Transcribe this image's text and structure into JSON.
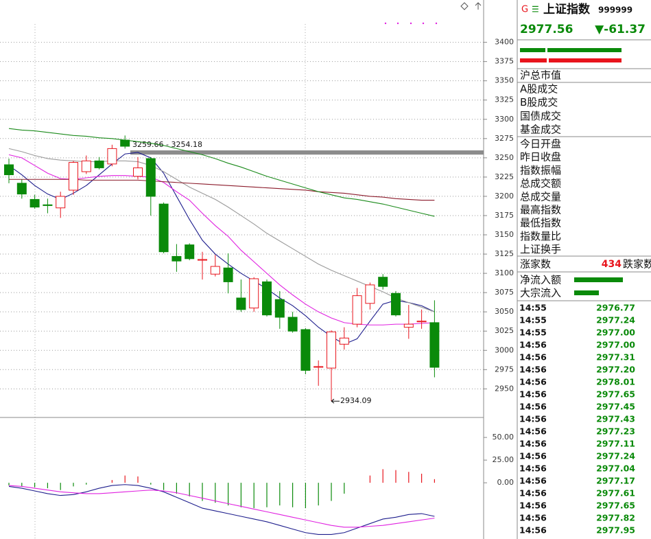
{
  "chart_data": [
    {
      "type": "candlestick",
      "ylim": [
        2920,
        3446
      ],
      "yticks": [
        3400,
        3375,
        3350,
        3325,
        3300,
        3275,
        3250,
        3225,
        3200,
        3175,
        3150,
        3125,
        3100,
        3075,
        3050,
        3025,
        3000,
        2975,
        2950
      ],
      "grid": true,
      "up_color": "#e8141c",
      "down_color": "#0a8a0a",
      "open": [
        3241,
        3217,
        3196,
        3189,
        3185,
        3208,
        3232,
        3246,
        3242,
        3273,
        3226,
        3249,
        3190,
        3122,
        3137,
        3117,
        3099,
        3107,
        3068,
        3055,
        3089,
        3066,
        3043,
        3027,
        2978,
        2977,
        3008,
        3034,
        3061,
        3095,
        3074,
        3030,
        3037,
        3036
      ],
      "high": [
        3249,
        3222,
        3202,
        3197,
        3206,
        3246,
        3253,
        3251,
        3267,
        3279,
        3251,
        3251,
        3192,
        3138,
        3139,
        3128,
        3124,
        3126,
        3092,
        3095,
        3092,
        3077,
        3050,
        3029,
        2987,
        3026,
        3030,
        3081,
        3088,
        3099,
        3077,
        3059,
        3053,
        3065
      ],
      "low": [
        3217,
        3197,
        3184,
        3178,
        3172,
        3202,
        3229,
        3235,
        3239,
        3262,
        3222,
        3175,
        3126,
        3102,
        3117,
        3092,
        3096,
        3074,
        3050,
        3050,
        3044,
        3028,
        3023,
        2969,
        2954,
        2934.09,
        3001,
        3030,
        3053,
        3079,
        3044,
        3015,
        3028,
        2965
      ],
      "close": [
        3228,
        3203,
        3186,
        3188,
        3200,
        3244,
        3246,
        3237,
        3262,
        3265,
        3237,
        3200,
        3128,
        3116,
        3119,
        3118,
        3109,
        3089,
        3053,
        3093,
        3046,
        3043,
        3025,
        2974,
        2979,
        3024,
        3016,
        3071,
        3085,
        3083,
        3046,
        3034,
        3038,
        2978
      ],
      "series": [
        {
          "color": "#1c1c8c",
          "values": [
            3240,
            3228,
            3214,
            3203,
            3196,
            3204,
            3214,
            3228,
            3242,
            3255,
            3257,
            3250,
            3230,
            3200,
            3170,
            3143,
            3125,
            3112,
            3100,
            3090,
            3080,
            3068,
            3058,
            3045,
            3030,
            3018,
            3008,
            3015,
            3038,
            3060,
            3065,
            3062,
            3058,
            3050
          ]
        },
        {
          "color": "#e020e0",
          "values": [
            3254,
            3250,
            3240,
            3230,
            3223,
            3222,
            3224,
            3226,
            3227,
            3227,
            3226,
            3225,
            3218,
            3206,
            3195,
            3178,
            3162,
            3148,
            3130,
            3115,
            3100,
            3085,
            3072,
            3060,
            3050,
            3042,
            3036,
            3034,
            3033,
            3033,
            3034,
            3034,
            3035,
            3036
          ]
        },
        {
          "color": "#9a9a9a",
          "values": [
            3262,
            3258,
            3253,
            3249,
            3247,
            3246,
            3245,
            3245,
            3246,
            3246,
            3245,
            3240,
            3232,
            3222,
            3212,
            3204,
            3196,
            3186,
            3175,
            3164,
            3152,
            3142,
            3132,
            3122,
            3112,
            3104,
            3097,
            3090,
            3083,
            3076,
            3068,
            3062,
            3056,
            3050
          ]
        },
        {
          "color": "#8b1a2a",
          "values": [
            3222,
            3222,
            3222,
            3222,
            3222,
            3222,
            3221,
            3221,
            3221,
            3221,
            3221,
            3220,
            3219,
            3218,
            3217,
            3216,
            3215,
            3214,
            3213,
            3212,
            3211,
            3210,
            3209,
            3208,
            3206,
            3205,
            3204,
            3202,
            3200,
            3199,
            3197,
            3196,
            3195,
            3195
          ]
        },
        {
          "color": "#1a8a1a",
          "values": [
            3288,
            3286,
            3285,
            3283,
            3281,
            3279,
            3278,
            3276,
            3275,
            3273,
            3271,
            3269,
            3266,
            3262,
            3258,
            3254,
            3249,
            3243,
            3238,
            3232,
            3226,
            3221,
            3216,
            3211,
            3206,
            3202,
            3198,
            3196,
            3193,
            3190,
            3186,
            3182,
            3178,
            3174
          ]
        }
      ],
      "gap": {
        "label": "3259.66 - 3254.18",
        "high": 3259.66,
        "low": 3254.18,
        "color": "#8c8c8c"
      },
      "low_label": "2934.09"
    },
    {
      "type": "macd",
      "ylim": [
        -62,
        69
      ],
      "yticks": [
        {
          "value": 50,
          "label": "50.00"
        },
        {
          "value": 25,
          "label": "25.00"
        },
        {
          "value": 0,
          "label": "0.00"
        }
      ],
      "up_color": "#e8141c",
      "down_color": "#0a8a0a",
      "values": [
        -3,
        -4,
        -5,
        -6,
        -8,
        -4,
        -2,
        0,
        3,
        8,
        7,
        -2,
        -8,
        -12,
        -15,
        -20,
        -22,
        -25,
        -27,
        -28,
        -27,
        -25,
        -27,
        -28,
        -25,
        -20,
        -12,
        0,
        8,
        15,
        14,
        12,
        10,
        4
      ],
      "series": [
        {
          "color": "#1c1c8c",
          "values": [
            -4,
            -6,
            -9,
            -12,
            -14,
            -13,
            -10,
            -6,
            -3,
            -2,
            -3,
            -6,
            -10,
            -16,
            -22,
            -28,
            -31,
            -34,
            -37,
            -40,
            -43,
            -47,
            -51,
            -55,
            -57,
            -57,
            -55,
            -50,
            -45,
            -40,
            -38,
            -35,
            -34,
            -37
          ]
        },
        {
          "color": "#e020e0",
          "values": [
            -3,
            -4,
            -6,
            -8,
            -10,
            -11,
            -12,
            -12,
            -11,
            -10,
            -9,
            -8,
            -9,
            -11,
            -14,
            -17,
            -20,
            -23,
            -26,
            -29,
            -32,
            -35,
            -38,
            -41,
            -44,
            -47,
            -49,
            -49,
            -48,
            -47,
            -45,
            -43,
            -41,
            -39
          ]
        }
      ]
    }
  ],
  "quote_panel": {
    "badge": "G",
    "menu": "☰",
    "name": "上证指数",
    "code": "999999",
    "price": "2977.56",
    "change": "▼-61.37",
    "market_labels": [
      "沪总市值",
      "A股成交",
      "B股成交",
      "国债成交",
      "基金成交"
    ],
    "index_labels": [
      "今日开盘",
      "昨日收盘",
      "指数振幅",
      "总成交额",
      "总成交量",
      "最高指数",
      "最低指数",
      "指数量比",
      "上证换手"
    ],
    "advancers_label": "涨家数",
    "advancers": "434",
    "decliners_label": "跌家数",
    "flow_labels": [
      "净流入额",
      "大宗流入"
    ],
    "ticks": {
      "times": [
        "14:55",
        "14:55",
        "14:55",
        "14:56",
        "14:56",
        "14:56",
        "14:56",
        "14:56",
        "14:56",
        "14:56",
        "14:56",
        "14:56",
        "14:56",
        "14:56",
        "14:56",
        "14:56",
        "14:56",
        "14:56",
        "14:56"
      ],
      "prices": [
        "2976.77",
        "2977.24",
        "2977.00",
        "2977.00",
        "2977.31",
        "2977.20",
        "2978.01",
        "2977.65",
        "2977.45",
        "2977.43",
        "2977.23",
        "2977.11",
        "2977.24",
        "2977.04",
        "2977.17",
        "2977.61",
        "2977.65",
        "2977.82",
        "2977.95"
      ]
    }
  }
}
